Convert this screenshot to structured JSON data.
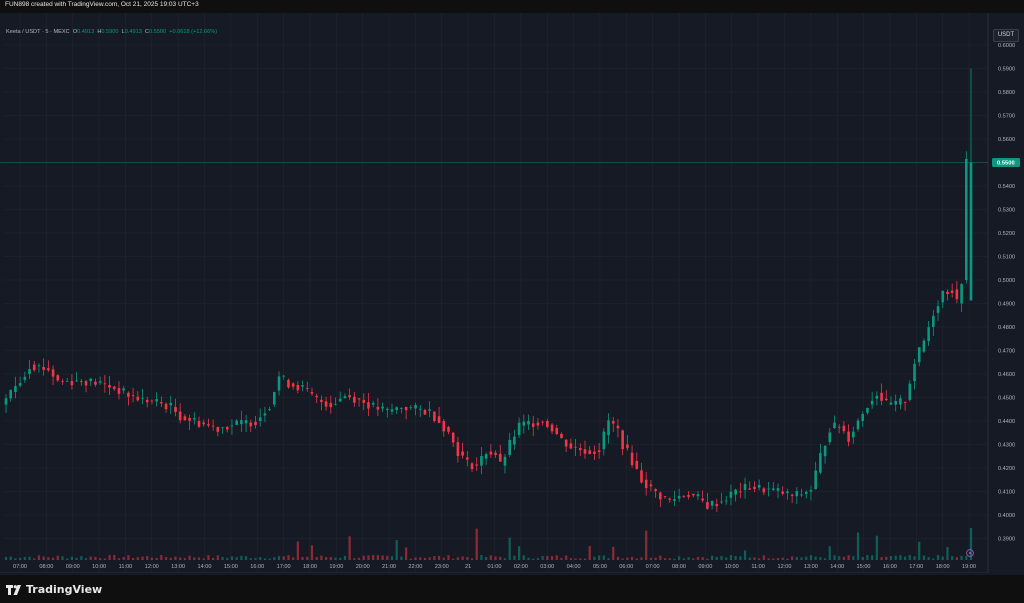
{
  "header": {
    "attribution": "FUN898 created with TradingView.com, Oct 21, 2025 19:03 UTC+3"
  },
  "legend": {
    "symbol": "Keeta / USDT · 5 · MEXC",
    "o_label": "O",
    "o_value": "0.4913",
    "h_label": "H",
    "h_value": "0.5900",
    "l_label": "L",
    "l_value": "0.4913",
    "c_label": "C",
    "c_value": "0.5500",
    "change": "+0.0618 (+12.66%)"
  },
  "currency_button": "USDT",
  "footer": {
    "brand": "TradingView"
  },
  "colors": {
    "up": "#089981",
    "down": "#f23645",
    "grid": "#232632",
    "price_line": "#089981",
    "bg": "#161a25"
  },
  "chart_data": {
    "type": "candlestick",
    "ylim": [
      0.385,
      0.6
    ],
    "y_ticks": [
      "0.6000",
      "0.5900",
      "0.5800",
      "0.5700",
      "0.5600",
      "0.5500",
      "0.5400",
      "0.5300",
      "0.5200",
      "0.5100",
      "0.5000",
      "0.4900",
      "0.4800",
      "0.4700",
      "0.4600",
      "0.4500",
      "0.4400",
      "0.4300",
      "0.4200",
      "0.4100",
      "0.4000",
      "0.3900"
    ],
    "x_ticks": [
      "07:00",
      "08:00",
      "09:00",
      "10:00",
      "11:00",
      "12:00",
      "13:00",
      "14:00",
      "15:00",
      "16:00",
      "17:00",
      "18:00",
      "19:00",
      "20:00",
      "21:00",
      "22:00",
      "23:00",
      "21",
      "01:00",
      "02:00",
      "03:00",
      "04:00",
      "05:00",
      "06:00",
      "07:00",
      "08:00",
      "09:00",
      "10:00",
      "11:00",
      "12:00",
      "13:00",
      "14:00",
      "15:00",
      "16:00",
      "17:00",
      "18:00",
      "19:00"
    ],
    "last_price": "0.5500",
    "price_path": [
      [
        0,
        0.447
      ],
      [
        3,
        0.455
      ],
      [
        5,
        0.46
      ],
      [
        6,
        0.464
      ],
      [
        10,
        0.462
      ],
      [
        12,
        0.457
      ],
      [
        18,
        0.457
      ],
      [
        21,
        0.456
      ],
      [
        24,
        0.454
      ],
      [
        27,
        0.451
      ],
      [
        30,
        0.449
      ],
      [
        33,
        0.448
      ],
      [
        36,
        0.446
      ],
      [
        38,
        0.442
      ],
      [
        41,
        0.44
      ],
      [
        44,
        0.438
      ],
      [
        46,
        0.437
      ],
      [
        48,
        0.438
      ],
      [
        51,
        0.439
      ],
      [
        54,
        0.44
      ],
      [
        57,
        0.447
      ],
      [
        59,
        0.459
      ],
      [
        61,
        0.456
      ],
      [
        64,
        0.454
      ],
      [
        67,
        0.449
      ],
      [
        70,
        0.447
      ],
      [
        73,
        0.451
      ],
      [
        76,
        0.449
      ],
      [
        79,
        0.446
      ],
      [
        82,
        0.444
      ],
      [
        85,
        0.446
      ],
      [
        88,
        0.445
      ],
      [
        91,
        0.444
      ],
      [
        93,
        0.44
      ],
      [
        95,
        0.435
      ],
      [
        97,
        0.427
      ],
      [
        99,
        0.422
      ],
      [
        101,
        0.421
      ],
      [
        103,
        0.427
      ],
      [
        105,
        0.426
      ],
      [
        106,
        0.421
      ],
      [
        108,
        0.43
      ],
      [
        110,
        0.438
      ],
      [
        112,
        0.439
      ],
      [
        115,
        0.44
      ],
      [
        117,
        0.437
      ],
      [
        119,
        0.432
      ],
      [
        121,
        0.429
      ],
      [
        123,
        0.428
      ],
      [
        125,
        0.427
      ],
      [
        127,
        0.428
      ],
      [
        129,
        0.44
      ],
      [
        131,
        0.436
      ],
      [
        132,
        0.43
      ],
      [
        134,
        0.423
      ],
      [
        136,
        0.415
      ],
      [
        138,
        0.411
      ],
      [
        140,
        0.408
      ],
      [
        142,
        0.406
      ],
      [
        144,
        0.408
      ],
      [
        146,
        0.409
      ],
      [
        148,
        0.407
      ],
      [
        150,
        0.404
      ],
      [
        153,
        0.406
      ],
      [
        156,
        0.41
      ],
      [
        159,
        0.412
      ],
      [
        162,
        0.411
      ],
      [
        165,
        0.41
      ],
      [
        168,
        0.408
      ],
      [
        170,
        0.409
      ],
      [
        172,
        0.411
      ],
      [
        174,
        0.425
      ],
      [
        176,
        0.437
      ],
      [
        178,
        0.438
      ],
      [
        180,
        0.433
      ],
      [
        182,
        0.44
      ],
      [
        184,
        0.447
      ],
      [
        186,
        0.452
      ],
      [
        188,
        0.447
      ],
      [
        190,
        0.447
      ],
      [
        192,
        0.449
      ],
      [
        194,
        0.465
      ],
      [
        196,
        0.474
      ],
      [
        198,
        0.486
      ],
      [
        200,
        0.495
      ],
      [
        202,
        0.496
      ],
      [
        203,
        0.49
      ],
      [
        204,
        0.5
      ],
      [
        205,
        0.55
      ]
    ],
    "volume_spikes": [
      [
        62,
        0.58
      ],
      [
        65,
        0.46
      ],
      [
        73,
        0.74
      ],
      [
        83,
        0.62
      ],
      [
        85,
        0.39
      ],
      [
        100,
        0.98
      ],
      [
        107,
        0.7
      ],
      [
        109,
        0.43
      ],
      [
        124,
        0.44
      ],
      [
        129,
        0.41
      ],
      [
        136,
        0.92
      ],
      [
        157,
        0.3
      ],
      [
        175,
        0.43
      ],
      [
        181,
        0.86
      ],
      [
        185,
        0.76
      ],
      [
        194,
        0.57
      ],
      [
        200,
        0.41
      ],
      [
        205,
        1.0
      ]
    ]
  }
}
